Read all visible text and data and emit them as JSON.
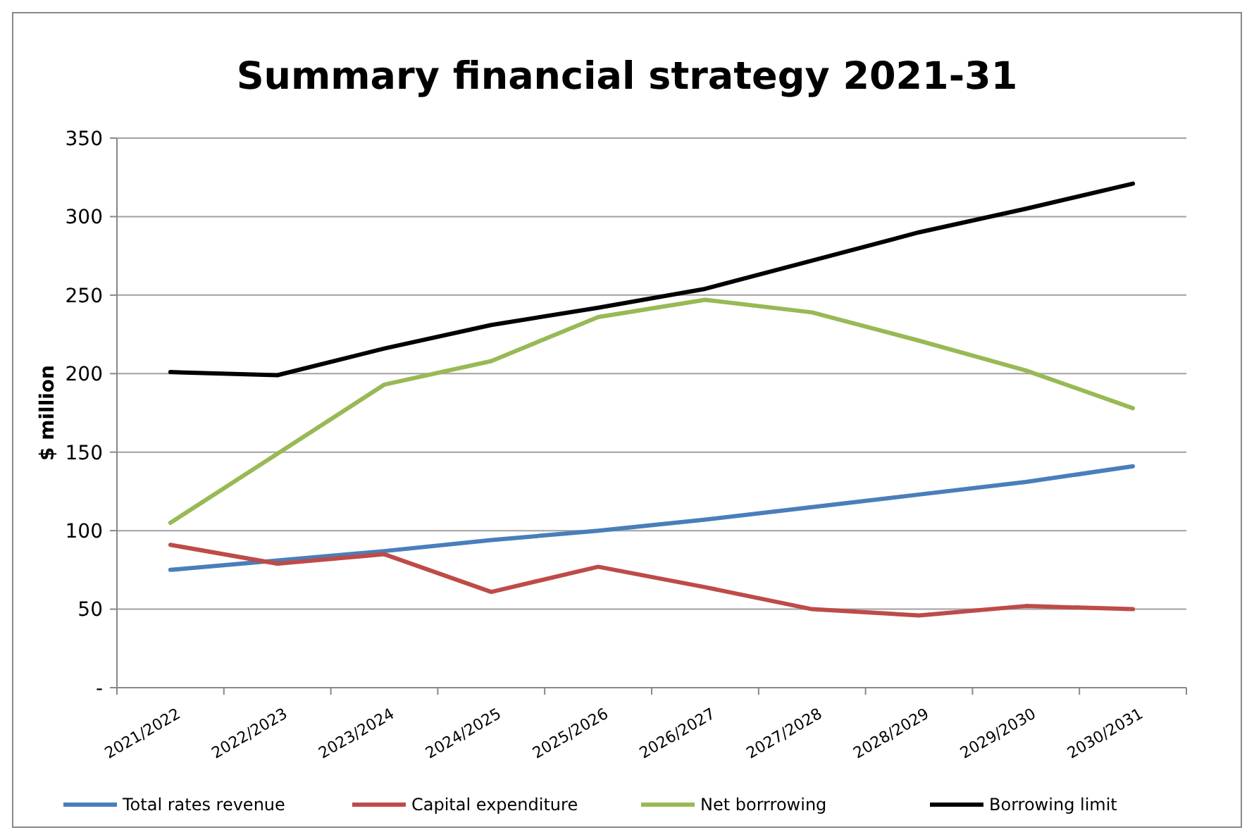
{
  "chart_data": {
    "type": "line",
    "title": "Summary financial strategy 2021-31",
    "ylabel": "$ million",
    "categories": [
      "2021/2022",
      "2022/2023",
      "2023/2024",
      "2024/2025",
      "2025/2026",
      "2026/2027",
      "2027/2028",
      "2028/2029",
      "2029/2030",
      "2030/2031"
    ],
    "series": [
      {
        "name": "Total rates revenue",
        "color": "#4a7ebb",
        "values": [
          75,
          81,
          87,
          94,
          100,
          107,
          115,
          123,
          131,
          141
        ]
      },
      {
        "name": "Capital expenditure",
        "color": "#be4b48",
        "values": [
          91,
          79,
          85,
          61,
          77,
          64,
          50,
          46,
          52,
          50
        ]
      },
      {
        "name": "Net borrrowing",
        "color": "#98b954",
        "values": [
          105,
          149,
          193,
          208,
          236,
          247,
          239,
          221,
          202,
          178
        ]
      },
      {
        "name": "Borrowing limit",
        "color": "#000000",
        "values": [
          201,
          199,
          216,
          231,
          242,
          254,
          272,
          290,
          305,
          321
        ]
      }
    ],
    "ylim": [
      0,
      350
    ],
    "yticks": [
      {
        "value": 0,
        "label": "-"
      },
      50,
      100,
      150,
      200,
      250,
      300,
      350
    ],
    "grid": "y",
    "legend": "bottom",
    "marker": "none",
    "line_style": "solid"
  }
}
